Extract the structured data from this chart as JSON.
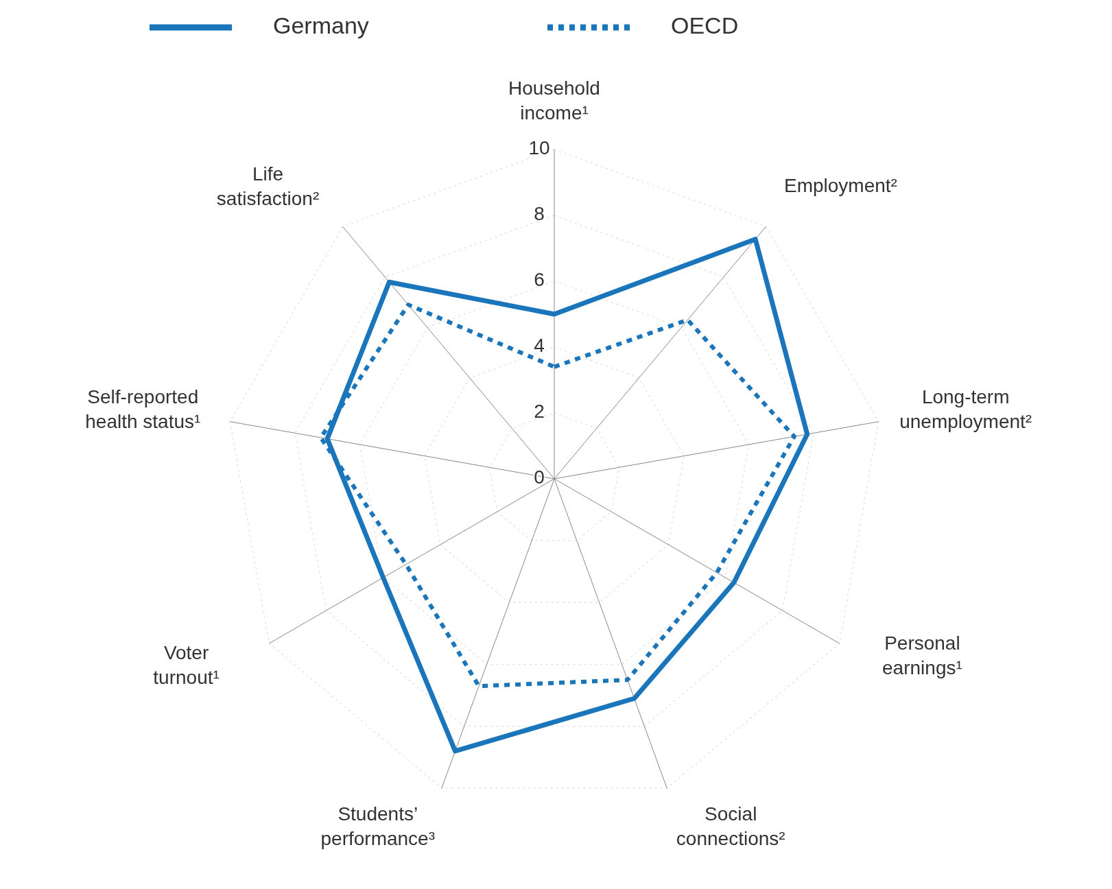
{
  "chart_data": {
    "type": "radar",
    "categories": [
      "Household income¹",
      "Employment²",
      "Long-term unemployment²",
      "Personal earnings¹",
      "Social connections²",
      "Students’ performance³",
      "Voter turnout¹",
      "Self-reported health status¹",
      "Life satisfaction²"
    ],
    "series": [
      {
        "name": "Germany",
        "color": "#1a75bb",
        "line_style": "solid",
        "values": [
          5.0,
          9.5,
          7.8,
          6.3,
          7.1,
          8.8,
          6.0,
          7.0,
          7.8
        ]
      },
      {
        "name": "OECD",
        "color": "#1a75bb",
        "line_style": "dotted",
        "values": [
          3.4,
          6.3,
          7.4,
          5.7,
          6.5,
          6.7,
          5.2,
          7.2,
          6.9
        ]
      }
    ],
    "ylim": [
      0,
      10
    ],
    "yticks": [
      0,
      2,
      4,
      6,
      8,
      10
    ],
    "grid": true,
    "legend": "top",
    "marker": "none"
  }
}
